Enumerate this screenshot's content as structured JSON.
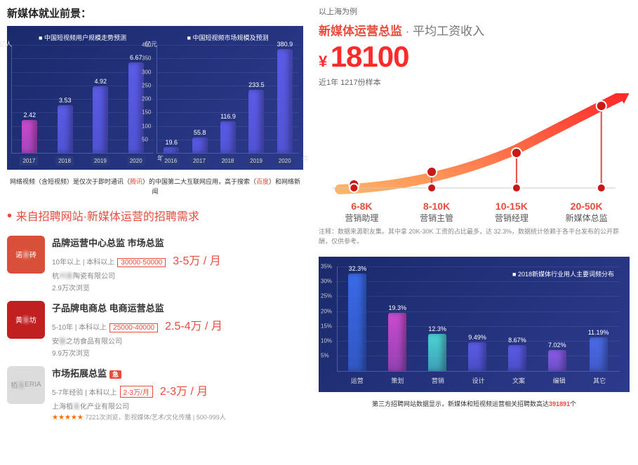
{
  "left": {
    "section_title": "新媒体就业前景：",
    "chart1": {
      "title": "中国短视频用户规模走势预测",
      "y_unit": "亿人",
      "x_unit": "年",
      "ylim": [
        0,
        8
      ],
      "yticks": [
        1,
        2,
        3,
        4,
        5,
        6,
        7,
        8
      ],
      "categories": [
        "2017",
        "2018",
        "2019",
        "2020"
      ],
      "values": [
        2.42,
        3.53,
        4.92,
        6.67
      ],
      "colors": [
        "#c94bcf",
        "#5b5be8",
        "#5b5be8",
        "#5b5be8"
      ]
    },
    "chart2": {
      "title": "中国短视频市场规模及预测",
      "y_unit": "亿元",
      "x_unit": "年",
      "ylim": [
        0,
        400
      ],
      "yticks": [
        50,
        100,
        150,
        200,
        250,
        300,
        350,
        400
      ],
      "categories": [
        "2016",
        "2017",
        "2018",
        "2019",
        "2020"
      ],
      "values": [
        19.6,
        55.8,
        116.9,
        233.5,
        380.9
      ],
      "colors": [
        "#5b5be8",
        "#5b5be8",
        "#5b5be8",
        "#5b5be8",
        "#5b5be8"
      ]
    },
    "caption_parts": [
      "网络视频（含短视频）是仅次于即时通讯（",
      "腾讯",
      "）的中国第二大互联网应用，高于搜索（",
      "百度",
      "）和网络新闻"
    ],
    "recruit_title": "来自招聘网站·新媒体运营的招聘需求",
    "jobs": [
      {
        "logo_color": "#d8503a",
        "logo_text": "诺",
        "logo_text2": "砖",
        "title": "品牌运营中心总监 市场总监",
        "meta": "10年以上 | 本科以上",
        "salary_box": "30000-50000",
        "salary_big": "3-5万 / 月",
        "company_prefix": "杭",
        "company_blur": "州某",
        "company_suffix": "陶瓷有限公司",
        "views": "2.9万次浏览"
      },
      {
        "logo_color": "#c02020",
        "logo_text": "黄",
        "logo_text2": "坊",
        "title": "子品牌电商总 电商运营总监",
        "meta": "5-10年 | 本科以上",
        "salary_box": "25000-40000",
        "salary_big": "2.5-4万 / 月",
        "company_prefix": "安",
        "company_blur": "徽",
        "company_suffix": "之坊食品有限公司",
        "views": "9.9万次浏览"
      },
      {
        "logo_color": "#dcdcdc",
        "logo_text": "栢",
        "logo_text2": "ERIA",
        "title": "市场拓展总监",
        "urgent": "急",
        "meta": "5-7年经验 | 本科以上",
        "salary_box": "2-3万/月",
        "salary_big": "2-3万 / 月",
        "company_prefix": "上海栢",
        "company_blur": "某",
        "company_suffix": "化产业有限公司",
        "stars": "★★★★★",
        "extra": "7221次浏览，影视媒体/艺术/文化传播 | 500-999人"
      }
    ]
  },
  "right": {
    "header": "以上海为例",
    "title_red": "新媒体运营总监",
    "title_gray": "· 平均工资收入",
    "currency": "¥",
    "salary": "18100",
    "sample": "近1年 1217份样本",
    "growth": {
      "points_x": [
        50,
        160,
        280,
        400
      ],
      "points_y": [
        130,
        112,
        85,
        18
      ],
      "baseline_y": 135,
      "arrow_color_start": "#ffb366",
      "arrow_color_end": "#ff2a2a",
      "dot_fill": "#c91818",
      "dot_stroke": "#ffffff",
      "stem_color": "#e74c3c"
    },
    "ranges": [
      {
        "val": "6-8K",
        "role": "营销助理"
      },
      {
        "val": "8-10K",
        "role": "营销主管"
      },
      {
        "val": "10-15K",
        "role": "营销经理"
      },
      {
        "val": "20-50K",
        "role": "新媒体总监"
      }
    ],
    "footnote": "注释：数据来源职友集。其中拿 20K-30K 工资的占比最多，达 32.3%，数据统计依赖于各平台发布的公开薪酬，仅供参考。",
    "keywords": {
      "legend": "2018新媒体行业用人主要词频分布",
      "ylim": [
        0,
        35
      ],
      "yticks": [
        5,
        10,
        15,
        20,
        25,
        30,
        35
      ],
      "categories": [
        "运营",
        "策划",
        "营销",
        "设计",
        "文案",
        "编辑",
        "其它"
      ],
      "values": [
        32.3,
        19.3,
        12.3,
        9.49,
        8.67,
        7.02,
        11.19
      ],
      "colors": [
        "#3a6ae8",
        "#c94bcf",
        "#4bd4d4",
        "#5b5be8",
        "#5b5be8",
        "#8b5be8",
        "#4b6be8"
      ]
    },
    "bottom_caption_parts": [
      "第三方招聘网站数据显示，新媒体和短视频运营相关招聘数高达",
      "391891",
      "个"
    ]
  }
}
